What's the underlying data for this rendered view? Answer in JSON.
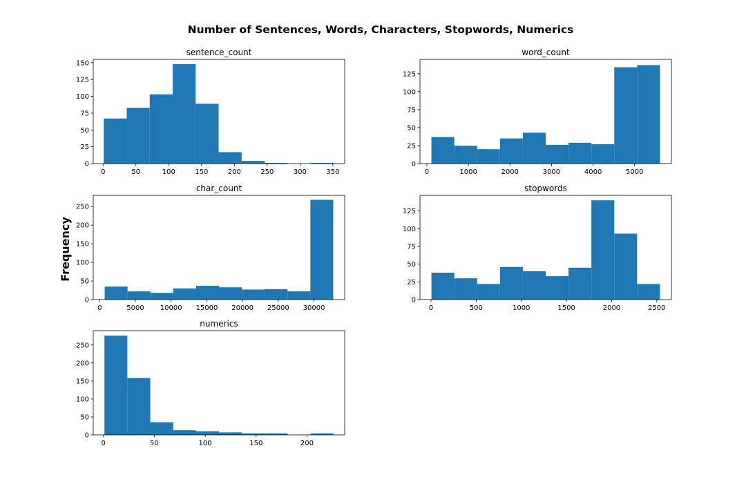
{
  "figure": {
    "title": "Number of Sentences, Words, Characters, Stopwords, Numerics",
    "ylabel": "Frequency"
  },
  "chart_data": [
    {
      "type": "bar",
      "title": "sentence_count",
      "bin_edges": [
        1,
        36,
        71,
        106,
        141,
        176,
        211,
        246,
        281,
        316,
        351
      ],
      "values": [
        67,
        83,
        103,
        148,
        89,
        17,
        4,
        1,
        0,
        1
      ],
      "xlim": [
        -15,
        368
      ],
      "ylim": [
        0,
        155
      ],
      "xticks": [
        0,
        50,
        100,
        150,
        200,
        250,
        300,
        350
      ],
      "yticks": [
        0,
        25,
        50,
        75,
        100,
        125,
        150
      ],
      "color": "#1f77b4"
    },
    {
      "type": "bar",
      "title": "word_count",
      "bin_edges": [
        110,
        660,
        1210,
        1760,
        2310,
        2860,
        3410,
        3960,
        4510,
        5060,
        5610
      ],
      "values": [
        37,
        25,
        20,
        35,
        43,
        26,
        29,
        27,
        134,
        137
      ],
      "xlim": [
        -165,
        5885
      ],
      "ylim": [
        0,
        145
      ],
      "xticks": [
        0,
        1000,
        2000,
        3000,
        4000,
        5000
      ],
      "yticks": [
        0,
        25,
        50,
        75,
        100,
        125
      ],
      "color": "#1f77b4"
    },
    {
      "type": "bar",
      "title": "char_count",
      "bin_edges": [
        700,
        3900,
        7100,
        10300,
        13500,
        16700,
        19900,
        23100,
        26300,
        29500,
        32700
      ],
      "values": [
        35,
        22,
        18,
        30,
        37,
        33,
        27,
        28,
        22,
        268
      ],
      "xlim": [
        -900,
        34300
      ],
      "ylim": [
        0,
        280
      ],
      "xticks": [
        0,
        5000,
        10000,
        15000,
        20000,
        25000,
        30000
      ],
      "yticks": [
        0,
        50,
        100,
        150,
        200,
        250
      ],
      "color": "#1f77b4"
    },
    {
      "type": "bar",
      "title": "stopwords",
      "bin_edges": [
        5,
        258,
        511,
        764,
        1017,
        1270,
        1523,
        1776,
        2029,
        2282,
        2535
      ],
      "values": [
        38,
        30,
        22,
        46,
        40,
        33,
        45,
        140,
        93,
        22
      ],
      "xlim": [
        -122,
        2662
      ],
      "ylim": [
        0,
        147
      ],
      "xticks": [
        0,
        500,
        1000,
        1500,
        2000,
        2500
      ],
      "yticks": [
        0,
        25,
        50,
        75,
        100,
        125
      ],
      "color": "#1f77b4"
    },
    {
      "type": "bar",
      "title": "numerics",
      "bin_edges": [
        1,
        23.5,
        46,
        68.5,
        91,
        113.5,
        136,
        158.5,
        181,
        203.5,
        226
      ],
      "values": [
        276,
        158,
        35,
        13,
        10,
        7,
        4,
        4,
        0,
        4
      ],
      "xlim": [
        -10,
        237
      ],
      "ylim": [
        0,
        290
      ],
      "xticks": [
        0,
        50,
        100,
        150,
        200
      ],
      "yticks": [
        0,
        50,
        100,
        150,
        200,
        250
      ],
      "color": "#1f77b4"
    }
  ]
}
